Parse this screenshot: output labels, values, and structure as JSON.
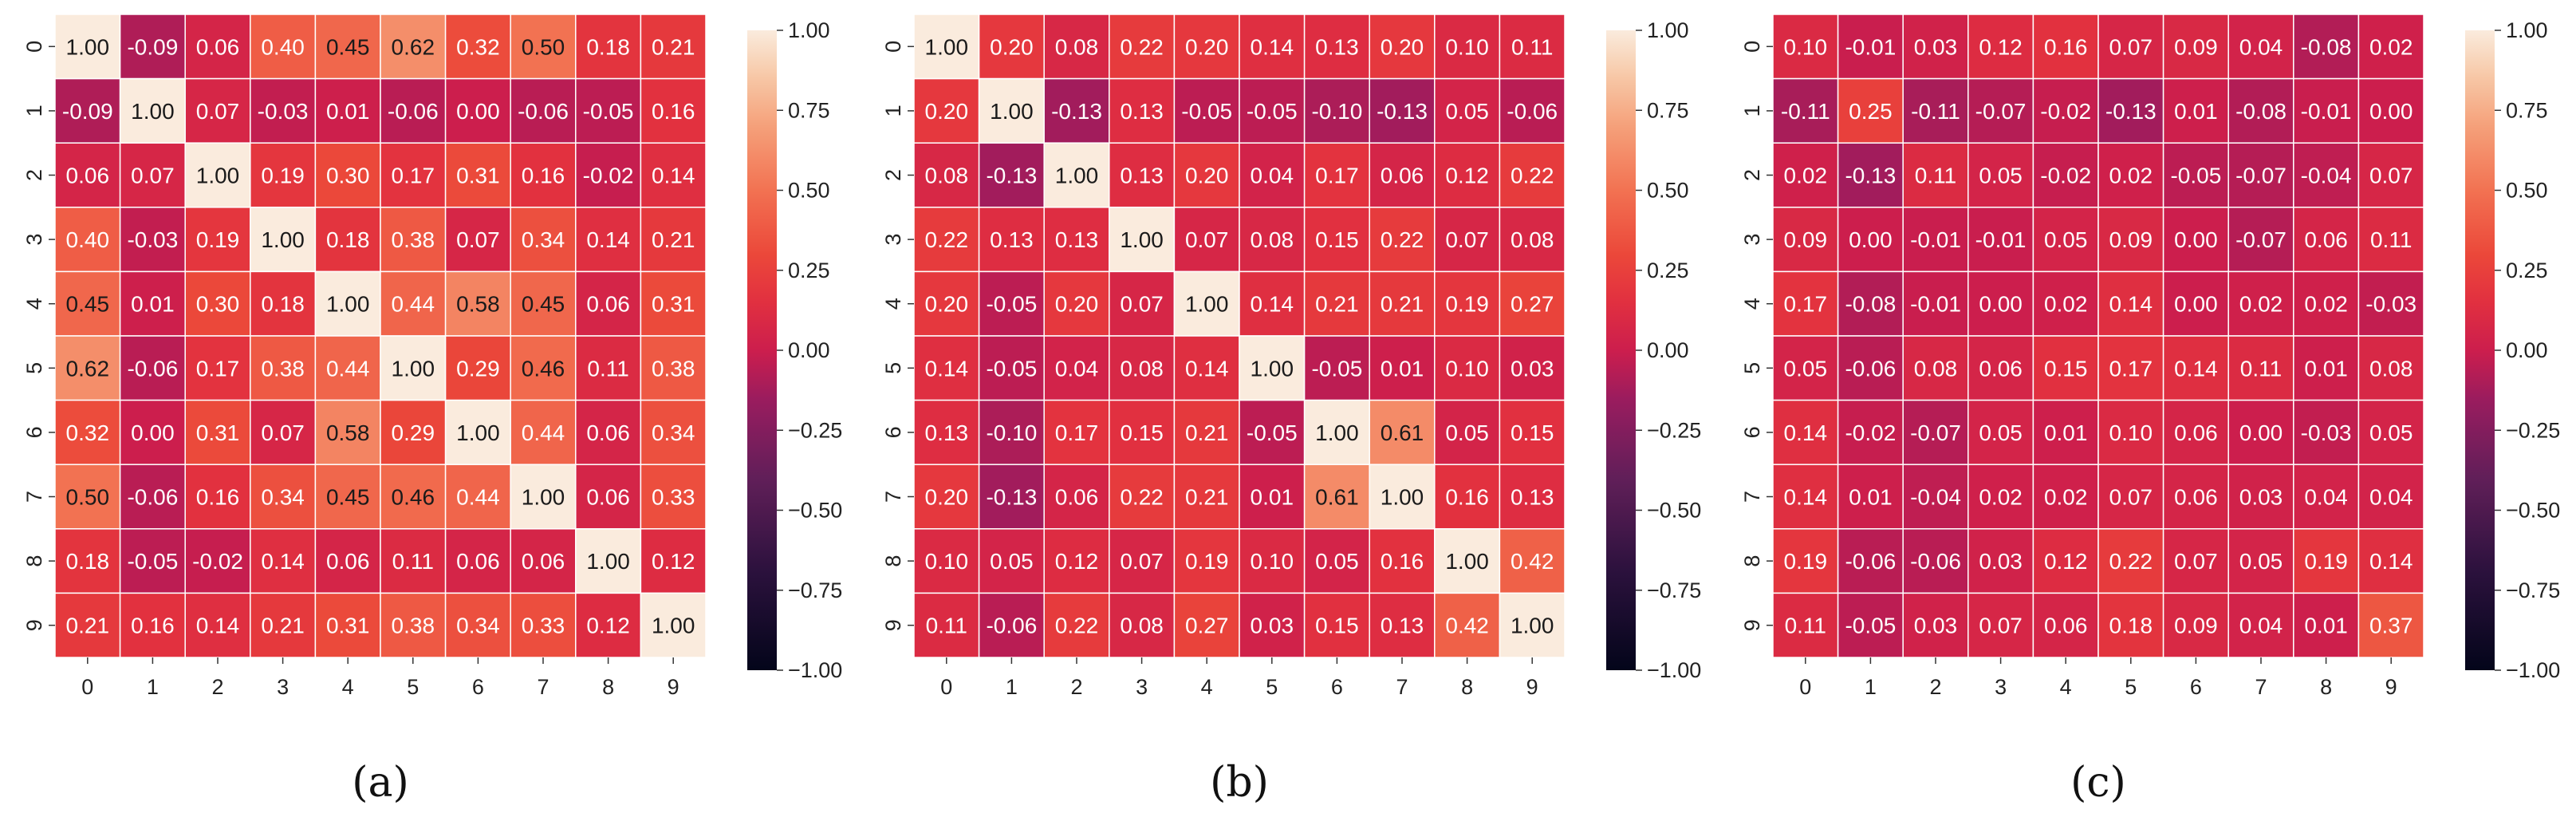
{
  "chart_data": [
    {
      "type": "heatmap",
      "caption": "(a)",
      "x_tick_labels": [
        "0",
        "1",
        "2",
        "3",
        "4",
        "5",
        "6",
        "7",
        "8",
        "9"
      ],
      "y_tick_labels": [
        "0",
        "1",
        "2",
        "3",
        "4",
        "5",
        "6",
        "7",
        "8",
        "9"
      ],
      "colorbar": {
        "vmin": -1.0,
        "vmax": 1.0,
        "ticks": [
          "1.00",
          "0.75",
          "0.50",
          "0.25",
          "0.00",
          "−0.25",
          "−0.50",
          "−0.75",
          "−1.00"
        ]
      },
      "matrix": [
        [
          1.0,
          -0.09,
          0.06,
          0.4,
          0.45,
          0.62,
          0.32,
          0.5,
          0.18,
          0.21
        ],
        [
          -0.09,
          1.0,
          0.07,
          -0.03,
          0.01,
          -0.06,
          0.0,
          -0.06,
          -0.05,
          0.16
        ],
        [
          0.06,
          0.07,
          1.0,
          0.19,
          0.3,
          0.17,
          0.31,
          0.16,
          -0.02,
          0.14
        ],
        [
          0.4,
          -0.03,
          0.19,
          1.0,
          0.18,
          0.38,
          0.07,
          0.34,
          0.14,
          0.21
        ],
        [
          0.45,
          0.01,
          0.3,
          0.18,
          1.0,
          0.44,
          0.58,
          0.45,
          0.06,
          0.31
        ],
        [
          0.62,
          -0.06,
          0.17,
          0.38,
          0.44,
          1.0,
          0.29,
          0.46,
          0.11,
          0.38
        ],
        [
          0.32,
          0.0,
          0.31,
          0.07,
          0.58,
          0.29,
          1.0,
          0.44,
          0.06,
          0.34
        ],
        [
          0.5,
          -0.06,
          0.16,
          0.34,
          0.45,
          0.46,
          0.44,
          1.0,
          0.06,
          0.33
        ],
        [
          0.18,
          -0.05,
          -0.02,
          0.14,
          0.06,
          0.11,
          0.06,
          0.06,
          1.0,
          0.12
        ],
        [
          0.21,
          0.16,
          0.14,
          0.21,
          0.31,
          0.38,
          0.34,
          0.33,
          0.12,
          1.0
        ]
      ]
    },
    {
      "type": "heatmap",
      "caption": "(b)",
      "x_tick_labels": [
        "0",
        "1",
        "2",
        "3",
        "4",
        "5",
        "6",
        "7",
        "8",
        "9"
      ],
      "y_tick_labels": [
        "0",
        "1",
        "2",
        "3",
        "4",
        "5",
        "6",
        "7",
        "8",
        "9"
      ],
      "colorbar": {
        "vmin": -1.0,
        "vmax": 1.0,
        "ticks": [
          "1.00",
          "0.75",
          "0.50",
          "0.25",
          "0.00",
          "−0.25",
          "−0.50",
          "−0.75",
          "−1.00"
        ]
      },
      "matrix": [
        [
          1.0,
          0.2,
          0.08,
          0.22,
          0.2,
          0.14,
          0.13,
          0.2,
          0.1,
          0.11
        ],
        [
          0.2,
          1.0,
          -0.13,
          0.13,
          -0.05,
          -0.05,
          -0.1,
          -0.13,
          0.05,
          -0.06
        ],
        [
          0.08,
          -0.13,
          1.0,
          0.13,
          0.2,
          0.04,
          0.17,
          0.06,
          0.12,
          0.22
        ],
        [
          0.22,
          0.13,
          0.13,
          1.0,
          0.07,
          0.08,
          0.15,
          0.22,
          0.07,
          0.08
        ],
        [
          0.2,
          -0.05,
          0.2,
          0.07,
          1.0,
          0.14,
          0.21,
          0.21,
          0.19,
          0.27
        ],
        [
          0.14,
          -0.05,
          0.04,
          0.08,
          0.14,
          1.0,
          -0.05,
          0.01,
          0.1,
          0.03
        ],
        [
          0.13,
          -0.1,
          0.17,
          0.15,
          0.21,
          -0.05,
          1.0,
          0.61,
          0.05,
          0.15
        ],
        [
          0.2,
          -0.13,
          0.06,
          0.22,
          0.21,
          0.01,
          0.61,
          1.0,
          0.16,
          0.13
        ],
        [
          0.1,
          0.05,
          0.12,
          0.07,
          0.19,
          0.1,
          0.05,
          0.16,
          1.0,
          0.42
        ],
        [
          0.11,
          -0.06,
          0.22,
          0.08,
          0.27,
          0.03,
          0.15,
          0.13,
          0.42,
          1.0
        ]
      ]
    },
    {
      "type": "heatmap",
      "caption": "(c)",
      "x_tick_labels": [
        "0",
        "1",
        "2",
        "3",
        "4",
        "5",
        "6",
        "7",
        "8",
        "9"
      ],
      "y_tick_labels": [
        "0",
        "1",
        "2",
        "3",
        "4",
        "5",
        "6",
        "7",
        "8",
        "9"
      ],
      "colorbar": {
        "vmin": -1.0,
        "vmax": 1.0,
        "ticks": [
          "1.00",
          "0.75",
          "0.50",
          "0.25",
          "0.00",
          "−0.25",
          "−0.50",
          "−0.75",
          "−1.00"
        ]
      },
      "matrix": [
        [
          0.1,
          -0.01,
          0.03,
          0.12,
          0.16,
          0.07,
          0.09,
          0.04,
          -0.08,
          0.02
        ],
        [
          -0.11,
          0.25,
          -0.11,
          -0.07,
          -0.02,
          -0.13,
          0.01,
          -0.08,
          -0.01,
          -0.0
        ],
        [
          0.02,
          -0.13,
          0.11,
          0.05,
          -0.02,
          0.02,
          -0.05,
          -0.07,
          -0.04,
          0.07
        ],
        [
          0.09,
          -0.0,
          -0.01,
          -0.01,
          0.05,
          0.09,
          -0.0,
          -0.07,
          0.06,
          0.11
        ],
        [
          0.17,
          -0.08,
          -0.01,
          -0.0,
          0.02,
          0.14,
          -0.0,
          0.02,
          0.02,
          -0.03
        ],
        [
          0.05,
          -0.06,
          0.08,
          0.06,
          0.15,
          0.17,
          0.14,
          0.11,
          0.01,
          0.08
        ],
        [
          0.14,
          -0.02,
          -0.07,
          0.05,
          0.01,
          0.1,
          0.06,
          0.0,
          -0.03,
          0.05
        ],
        [
          0.14,
          0.01,
          -0.04,
          0.02,
          0.02,
          0.07,
          0.06,
          0.03,
          0.04,
          0.04
        ],
        [
          0.19,
          -0.06,
          -0.06,
          0.03,
          0.12,
          0.22,
          0.07,
          0.05,
          0.19,
          0.14
        ],
        [
          0.11,
          -0.05,
          0.03,
          0.07,
          0.06,
          0.18,
          0.09,
          0.04,
          0.01,
          0.37
        ]
      ]
    }
  ]
}
